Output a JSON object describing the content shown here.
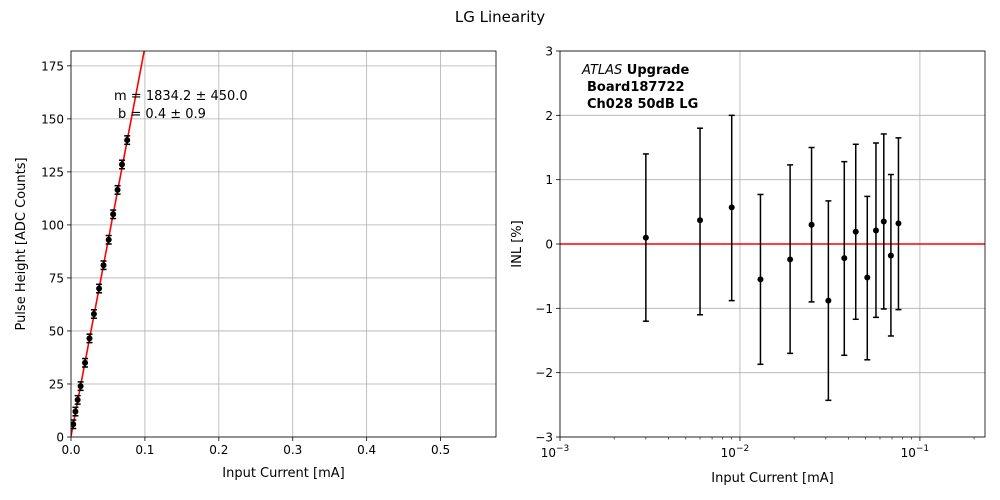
{
  "figure": {
    "title": "LG Linearity"
  },
  "chart_data": [
    {
      "type": "scatter",
      "name": "linearity",
      "xlabel": "Input Current [mA]",
      "ylabel": "Pulse Height [ADC Counts]",
      "xlim": [
        0,
        0.575
      ],
      "ylim": [
        0,
        182
      ],
      "x_ticks": [
        0.0,
        0.1,
        0.2,
        0.3,
        0.4,
        0.5
      ],
      "x_tick_labels": [
        "0.0",
        "0.1",
        "0.2",
        "0.3",
        "0.4",
        "0.5"
      ],
      "y_ticks": [
        0,
        25,
        50,
        75,
        100,
        125,
        150,
        175
      ],
      "y_tick_labels": [
        "0",
        "25",
        "50",
        "75",
        "100",
        "125",
        "150",
        "175"
      ],
      "grid": true,
      "points": [
        {
          "x": 0.003,
          "y": 6,
          "err": 2.0
        },
        {
          "x": 0.006,
          "y": 12,
          "err": 2.0
        },
        {
          "x": 0.009,
          "y": 17.5,
          "err": 2.0
        },
        {
          "x": 0.013,
          "y": 24,
          "err": 2.0
        },
        {
          "x": 0.019,
          "y": 35,
          "err": 2.0
        },
        {
          "x": 0.025,
          "y": 46.5,
          "err": 2.0
        },
        {
          "x": 0.031,
          "y": 58,
          "err": 2.0
        },
        {
          "x": 0.038,
          "y": 70,
          "err": 2.0
        },
        {
          "x": 0.044,
          "y": 81,
          "err": 2.0
        },
        {
          "x": 0.051,
          "y": 93,
          "err": 2.0
        },
        {
          "x": 0.057,
          "y": 105,
          "err": 2.0
        },
        {
          "x": 0.063,
          "y": 116.5,
          "err": 2.0
        },
        {
          "x": 0.069,
          "y": 128.5,
          "err": 2.0
        },
        {
          "x": 0.076,
          "y": 140,
          "err": 2.0
        }
      ],
      "fit": {
        "slope": 1834.2,
        "intercept": 0.4,
        "color": "#ff0000"
      },
      "annotations": [
        "m = 1834.2 ± 450.0",
        "b = 0.4 ± 0.9"
      ],
      "marker_color": "#000000"
    },
    {
      "type": "scatter",
      "name": "inl",
      "xlabel": "Input Current [mA]",
      "ylabel": "INL [%]",
      "xscale": "log",
      "xlim": [
        0.001,
        0.23
      ],
      "ylim": [
        -3,
        3
      ],
      "x_ticks": [
        0.001,
        0.01,
        0.1
      ],
      "x_tick_labels": [
        {
          "base": "10",
          "exp": "−3"
        },
        {
          "base": "10",
          "exp": "−2"
        },
        {
          "base": "10",
          "exp": "−1"
        }
      ],
      "y_ticks": [
        -3,
        -2,
        -1,
        0,
        1,
        2,
        3
      ],
      "y_tick_labels": [
        "−3",
        "−2",
        "−1",
        "0",
        "1",
        "2",
        "3"
      ],
      "grid": true,
      "reference_line": {
        "y": 0,
        "color": "#ff0000"
      },
      "points": [
        {
          "x": 0.003,
          "y": 0.1,
          "lo": -1.2,
          "hi": 1.4
        },
        {
          "x": 0.006,
          "y": 0.37,
          "lo": -1.1,
          "hi": 1.8
        },
        {
          "x": 0.009,
          "y": 0.57,
          "lo": -0.88,
          "hi": 2.0
        },
        {
          "x": 0.013,
          "y": -0.55,
          "lo": -1.87,
          "hi": 0.77
        },
        {
          "x": 0.019,
          "y": -0.24,
          "lo": -1.7,
          "hi": 1.23
        },
        {
          "x": 0.025,
          "y": 0.3,
          "lo": -0.9,
          "hi": 1.5
        },
        {
          "x": 0.031,
          "y": -0.88,
          "lo": -2.43,
          "hi": 0.67
        },
        {
          "x": 0.038,
          "y": -0.22,
          "lo": -1.73,
          "hi": 1.28
        },
        {
          "x": 0.044,
          "y": 0.19,
          "lo": -1.17,
          "hi": 1.55
        },
        {
          "x": 0.051,
          "y": -0.52,
          "lo": -1.8,
          "hi": 0.74
        },
        {
          "x": 0.057,
          "y": 0.21,
          "lo": -1.14,
          "hi": 1.57
        },
        {
          "x": 0.063,
          "y": 0.35,
          "lo": -1.01,
          "hi": 1.71
        },
        {
          "x": 0.069,
          "y": -0.18,
          "lo": -1.43,
          "hi": 1.08
        },
        {
          "x": 0.076,
          "y": 0.32,
          "lo": -1.02,
          "hi": 1.65
        }
      ],
      "label": {
        "experiment": "ATLAS",
        "tag": "Upgrade",
        "board": "Board187722",
        "channel": "Ch028 50dB LG"
      },
      "marker_color": "#000000"
    }
  ]
}
